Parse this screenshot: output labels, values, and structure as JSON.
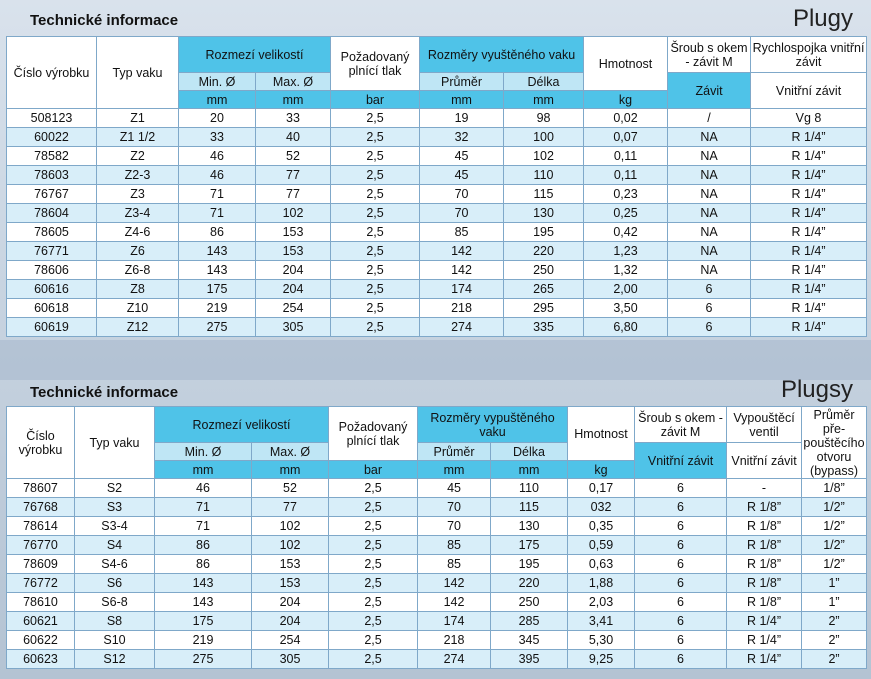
{
  "plugy": {
    "section_title": "Technické informace",
    "product": "Plugy",
    "headers": {
      "cislo": "Číslo výrobku",
      "typ": "Typ vaku",
      "rozmezi": "Rozmezí velikostí",
      "min": "Min. Ø",
      "max": "Max. Ø",
      "tlak": "Požadovaný plnící tlak",
      "rozmery": "Rozměry vyuštěného vaku",
      "prumer": "Průměr",
      "delka": "Délka",
      "hmotnost": "Hmotnost",
      "sroub": "Šroub s okem - závit M",
      "sroub_sub": "Závit",
      "spojka": "Rychlospojka vnitřní závit",
      "spojka_sub": "Vnitřní závit"
    },
    "units": [
      "mm",
      "mm",
      "bar",
      "mm",
      "mm",
      "kg"
    ],
    "rows": [
      [
        "508123",
        "Z1",
        "20",
        "33",
        "2,5",
        "19",
        "98",
        "0,02",
        "/",
        "Vg 8"
      ],
      [
        "60022",
        "Z1 1/2",
        "33",
        "40",
        "2,5",
        "32",
        "100",
        "0,07",
        "NA",
        "R 1/4”"
      ],
      [
        "78582",
        "Z2",
        "46",
        "52",
        "2,5",
        "45",
        "102",
        "0,11",
        "NA",
        "R 1/4”"
      ],
      [
        "78603",
        "Z2-3",
        "46",
        "77",
        "2,5",
        "45",
        "110",
        "0,11",
        "NA",
        "R 1/4”"
      ],
      [
        "76767",
        "Z3",
        "71",
        "77",
        "2,5",
        "70",
        "115",
        "0,23",
        "NA",
        "R 1/4”"
      ],
      [
        "78604",
        "Z3-4",
        "71",
        "102",
        "2,5",
        "70",
        "130",
        "0,25",
        "NA",
        "R 1/4”"
      ],
      [
        "78605",
        "Z4-6",
        "86",
        "153",
        "2,5",
        "85",
        "195",
        "0,42",
        "NA",
        "R 1/4”"
      ],
      [
        "76771",
        "Z6",
        "143",
        "153",
        "2,5",
        "142",
        "220",
        "1,23",
        "NA",
        "R 1/4”"
      ],
      [
        "78606",
        "Z6-8",
        "143",
        "204",
        "2,5",
        "142",
        "250",
        "1,32",
        "NA",
        "R 1/4”"
      ],
      [
        "60616",
        "Z8",
        "175",
        "204",
        "2,5",
        "174",
        "265",
        "2,00",
        "6",
        "R 1/4”"
      ],
      [
        "60618",
        "Z10",
        "219",
        "254",
        "2,5",
        "218",
        "295",
        "3,50",
        "6",
        "R 1/4”"
      ],
      [
        "60619",
        "Z12",
        "275",
        "305",
        "2,5",
        "274",
        "335",
        "6,80",
        "6",
        "R 1/4”"
      ]
    ]
  },
  "plugsy": {
    "section_title": "Technické informace",
    "product": "Plugsy",
    "headers": {
      "cislo": "Číslo výrobku",
      "typ": "Typ vaku",
      "rozmezi": "Rozmezí velikostí",
      "min": "Min. Ø",
      "max": "Max. Ø",
      "tlak": "Požadovaný plnící tlak",
      "rozmery": "Rozměry vypuštěného vaku",
      "prumer": "Průměr",
      "delka": "Délka",
      "hmotnost": "Hmotnost",
      "sroub": "Šroub s okem - závit M",
      "sroub_sub": "Vnitřní závit",
      "ventil": "Vypouštěcí ventil",
      "ventil_sub": "Vnitřní závit",
      "prumer_otvoru": "Průměr pře- pouštěcího otvoru (bypass)"
    },
    "units": [
      "mm",
      "mm",
      "bar",
      "mm",
      "mm",
      "kg"
    ],
    "rows": [
      [
        "78607",
        "S2",
        "46",
        "52",
        "2,5",
        "45",
        "110",
        "0,17",
        "6",
        "-",
        "1/8”"
      ],
      [
        "76768",
        "S3",
        "71",
        "77",
        "2,5",
        "70",
        "115",
        "032",
        "6",
        "R 1/8”",
        "1/2”"
      ],
      [
        "78614",
        "S3-4",
        "71",
        "102",
        "2,5",
        "70",
        "130",
        "0,35",
        "6",
        "R 1/8”",
        "1/2”"
      ],
      [
        "76770",
        "S4",
        "86",
        "102",
        "2,5",
        "85",
        "175",
        "0,59",
        "6",
        "R 1/8”",
        "1/2”"
      ],
      [
        "78609",
        "S4-6",
        "86",
        "153",
        "2,5",
        "85",
        "195",
        "0,63",
        "6",
        "R 1/8”",
        "1/2”"
      ],
      [
        "76772",
        "S6",
        "143",
        "153",
        "2,5",
        "142",
        "220",
        "1,88",
        "6",
        "R 1/8”",
        "1”"
      ],
      [
        "78610",
        "S6-8",
        "143",
        "204",
        "2,5",
        "142",
        "250",
        "2,03",
        "6",
        "R 1/8”",
        "1”"
      ],
      [
        "60621",
        "S8",
        "175",
        "204",
        "2,5",
        "174",
        "285",
        "3,41",
        "6",
        "R 1/4”",
        "2”"
      ],
      [
        "60622",
        "S10",
        "219",
        "254",
        "2,5",
        "218",
        "345",
        "5,30",
        "6",
        "R 1/4”",
        "2”"
      ],
      [
        "60623",
        "S12",
        "275",
        "305",
        "2,5",
        "274",
        "395",
        "9,25",
        "6",
        "R 1/4”",
        "2”"
      ]
    ]
  }
}
